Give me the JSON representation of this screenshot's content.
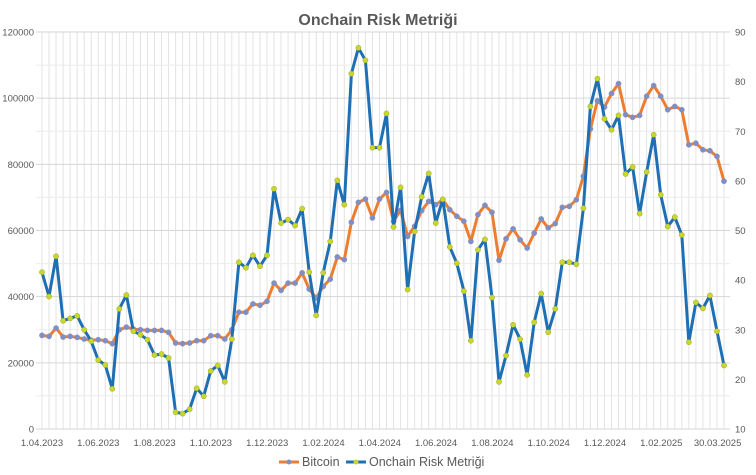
{
  "chart_data": {
    "type": "line",
    "title": "Onchain Risk Metriği",
    "x_range": [
      "1.04.2023",
      "30.03.2025"
    ],
    "x_tick_labels": [
      "1.04.2023",
      "1.06.2023",
      "1.08.2023",
      "1.10.2023",
      "1.12.2023",
      "1.02.2024",
      "1.04.2024",
      "1.06.2024",
      "1.08.2024",
      "1.10.2024",
      "1.12.2024",
      "1.02.2025",
      "30.03.2025"
    ],
    "y_left": {
      "range": [
        0,
        120000
      ],
      "ticks": [
        0,
        20000,
        40000,
        60000,
        80000,
        100000,
        120000
      ]
    },
    "y_right": {
      "range": [
        10,
        90
      ],
      "ticks": [
        10,
        20,
        30,
        40,
        50,
        60,
        70,
        80,
        90
      ]
    },
    "grid": true,
    "legend_position": "bottom",
    "series": [
      {
        "name": "Bitcoin",
        "axis": "left",
        "color": "#ed7d31",
        "marker_color": "#7f8fc4",
        "values": [
          28300,
          28000,
          30500,
          27800,
          28000,
          27700,
          27200,
          26800,
          27000,
          26700,
          25800,
          30000,
          30800,
          30200,
          30000,
          29800,
          29800,
          29800,
          29200,
          26000,
          25800,
          26000,
          26700,
          26700,
          28200,
          28200,
          27200,
          30000,
          35300,
          35300,
          37800,
          37400,
          38600,
          44100,
          41900,
          44100,
          44100,
          47200,
          42300,
          39600,
          43100,
          45300,
          52000,
          51200,
          62500,
          68500,
          69500,
          63800,
          69500,
          71500,
          62800,
          66100,
          58200,
          61300,
          66000,
          68800,
          67800,
          69300,
          66300,
          64300,
          62800,
          56700,
          64800,
          67600,
          65500,
          51000,
          57500,
          60500,
          57200,
          54700,
          59200,
          63500,
          60800,
          62100,
          67000,
          67300,
          69300,
          76400,
          90700,
          99200,
          97300,
          101400,
          104400,
          95000,
          94200,
          94800,
          100600,
          103800,
          100600,
          96500,
          97500,
          96500,
          85900,
          86400,
          84400,
          84100,
          82400,
          74900
        ]
      },
      {
        "name": "Onchain Risk Metriği",
        "axis": "right",
        "color": "#1f6fb4",
        "marker_color": "#c9d62b",
        "values": [
          41.6,
          36.7,
          44.8,
          31.8,
          32.3,
          32.8,
          30.0,
          27.7,
          23.9,
          22.9,
          18.1,
          34.2,
          37.0,
          29.7,
          29.0,
          28.0,
          24.9,
          25.1,
          24.3,
          13.4,
          13.1,
          14.0,
          18.2,
          16.6,
          21.7,
          22.8,
          19.5,
          28.1,
          43.6,
          42.5,
          45.0,
          42.8,
          45.0,
          58.4,
          51.5,
          52.2,
          51.0,
          54.4,
          41.6,
          32.9,
          41.5,
          47.8,
          60.1,
          55.2,
          81.6,
          86.8,
          84.3,
          66.7,
          66.7,
          73.6,
          50.7,
          58.7,
          38.1,
          49.8,
          56.8,
          61.5,
          51.5,
          56.3,
          46.7,
          43.4,
          37.8,
          27.8,
          46.1,
          48.2,
          36.5,
          19.5,
          24.8,
          31.0,
          28.1,
          20.9,
          31.5,
          37.3,
          29.5,
          34.2,
          43.6,
          43.6,
          43.2,
          54.5,
          75.0,
          80.6,
          72.5,
          70.3,
          73.2,
          61.4,
          62.8,
          53.4,
          61.8,
          69.3,
          57.2,
          50.8,
          52.7,
          49.1,
          27.5,
          35.5,
          34.3,
          36.9,
          29.7,
          22.8
        ]
      }
    ]
  }
}
